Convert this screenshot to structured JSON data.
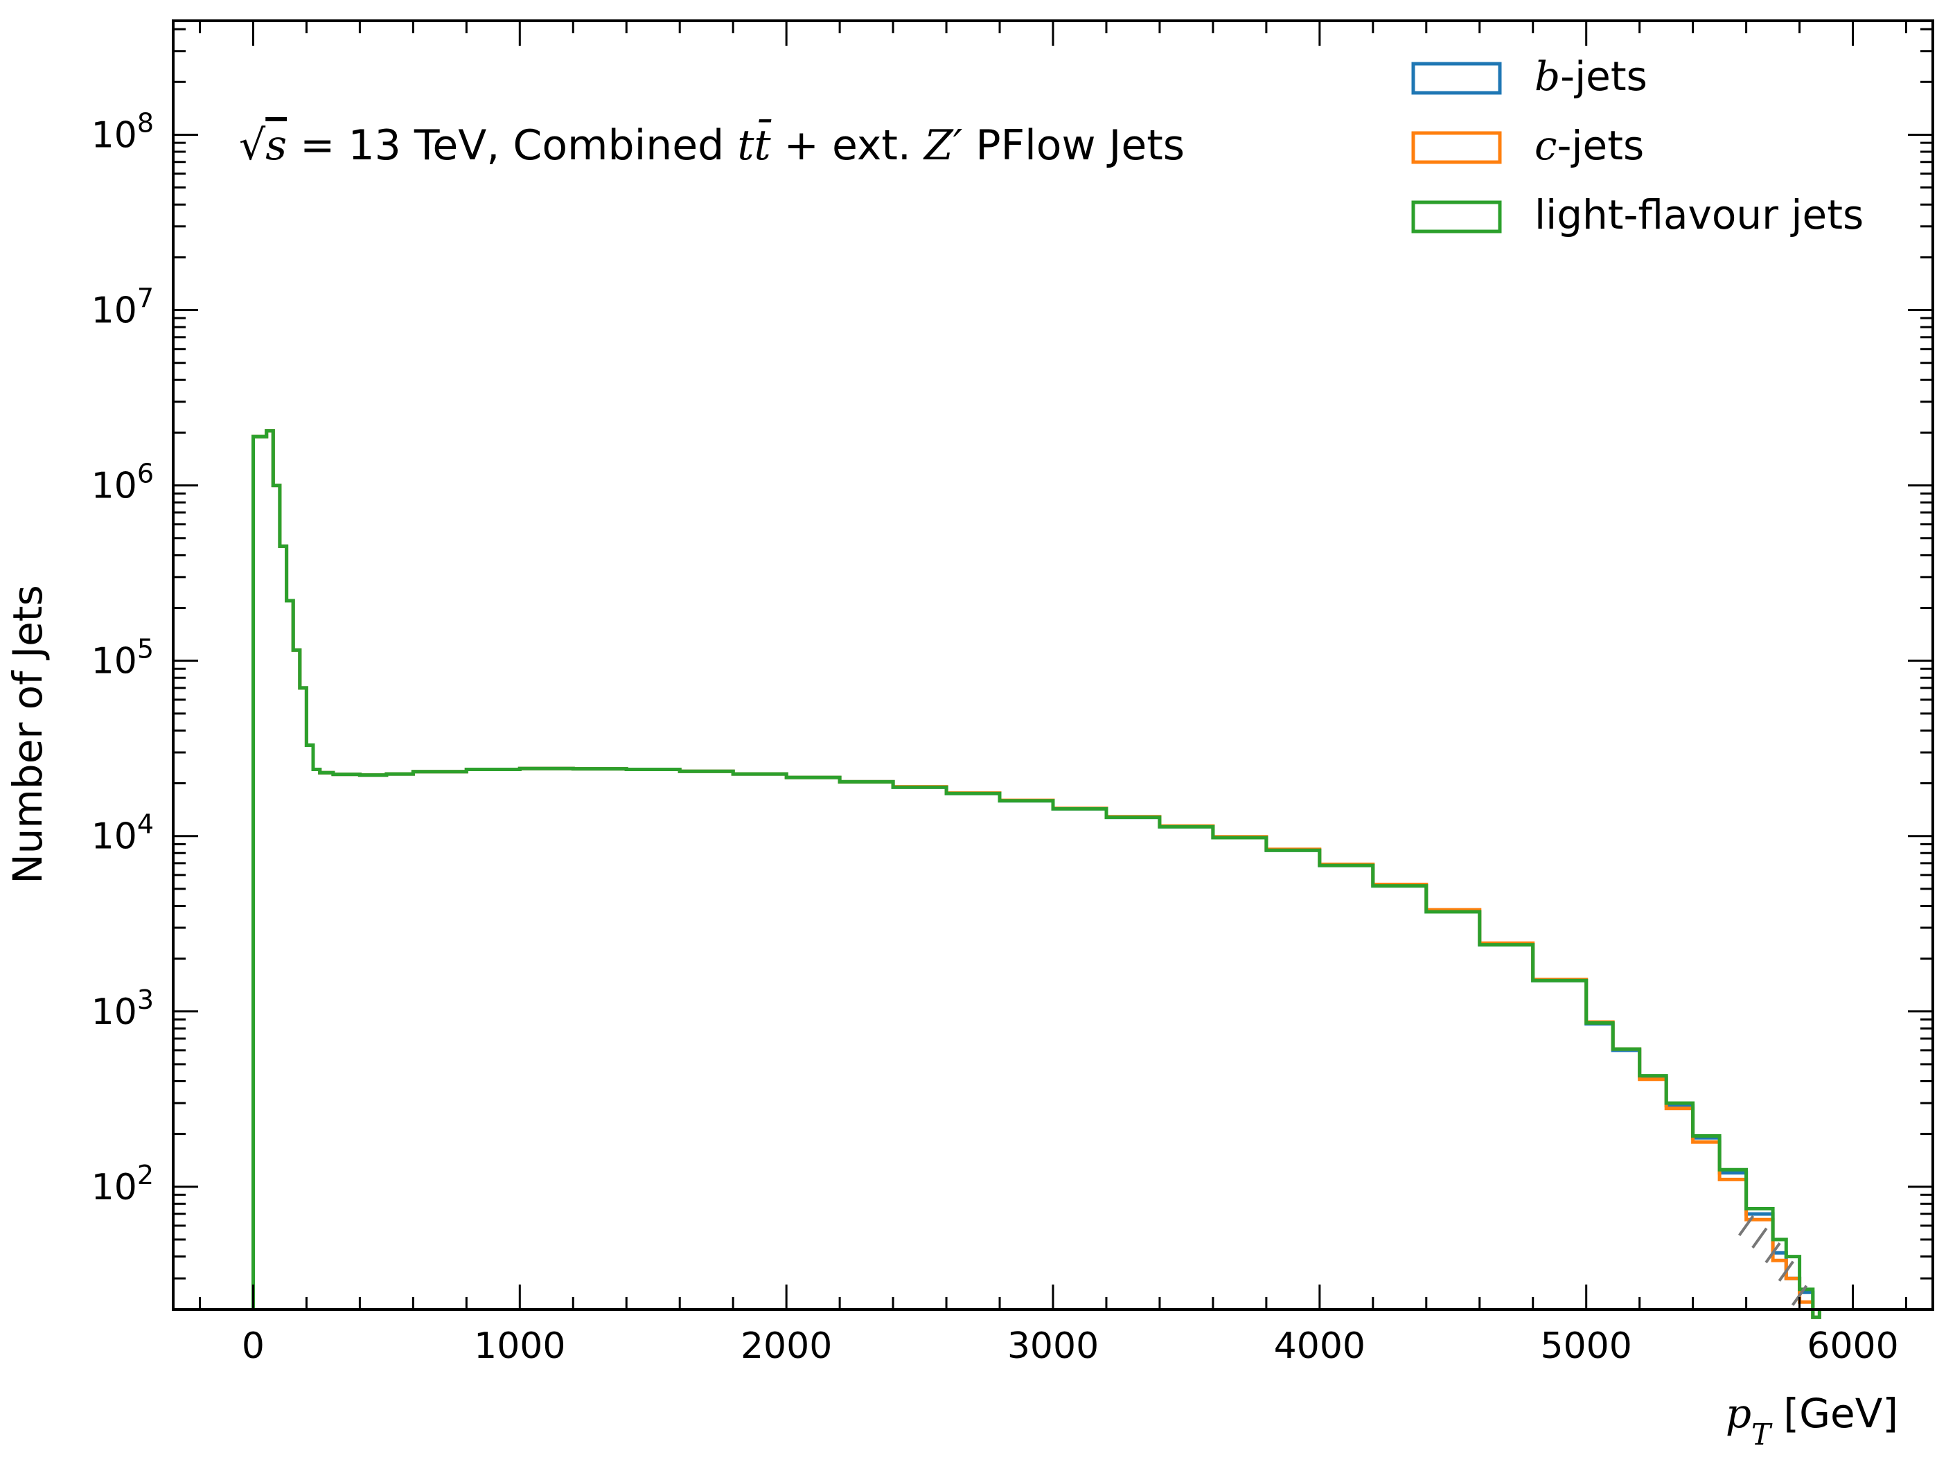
{
  "chart_data": {
    "type": "histogram",
    "title": "",
    "annotation": {
      "sqrt": "√",
      "s": "s",
      "rest": " = 13 TeV, Combined ",
      "tt": "tt̄",
      "plus_ext": " + ext. ",
      "z": "Z′",
      "tail": " PFlow Jets"
    },
    "xlabel": {
      "var": "p",
      "sub": "T",
      "unit": " [GeV]"
    },
    "ylabel": "Number of Jets",
    "xlim": [
      -300,
      6300
    ],
    "ylim_log10": [
      1.3,
      8.65
    ],
    "yscale": "log",
    "x_ticks": [
      "0",
      "1000",
      "2000",
      "3000",
      "4000",
      "5000",
      "6000"
    ],
    "x_tick_values": [
      0,
      1000,
      2000,
      3000,
      4000,
      5000,
      6000
    ],
    "y_ticks": [
      {
        "base": "10",
        "exp": "2",
        "value": 100
      },
      {
        "base": "10",
        "exp": "3",
        "value": 1000
      },
      {
        "base": "10",
        "exp": "4",
        "value": 10000
      },
      {
        "base": "10",
        "exp": "5",
        "value": 100000
      },
      {
        "base": "10",
        "exp": "6",
        "value": 1000000
      },
      {
        "base": "10",
        "exp": "7",
        "value": 10000000
      },
      {
        "base": "10",
        "exp": "8",
        "value": 100000000
      }
    ],
    "legend": {
      "position": "top-right",
      "entries": [
        {
          "ital": "b",
          "rest": "-jets",
          "color": "#1f77b4"
        },
        {
          "ital": "c",
          "rest": "-jets",
          "color": "#ff7f0e"
        },
        {
          "ital": "",
          "rest": "light-flavour jets",
          "color": "#2ca02c"
        }
      ]
    },
    "bin_edges_gev": [
      0,
      6000
    ],
    "bin_width_gev": 25,
    "series": [
      {
        "name": "b-jets",
        "color": "#1f77b4",
        "points": [
          [
            0,
            1900000
          ],
          [
            50,
            2050000
          ],
          [
            75,
            1000000
          ],
          [
            100,
            450000
          ],
          [
            125,
            220000
          ],
          [
            150,
            115000
          ],
          [
            175,
            70000
          ],
          [
            200,
            33000
          ],
          [
            225,
            24000
          ],
          [
            250,
            23000
          ],
          [
            300,
            22500
          ],
          [
            400,
            22300
          ],
          [
            500,
            22600
          ],
          [
            600,
            23300
          ],
          [
            800,
            24000
          ],
          [
            1000,
            24300
          ],
          [
            1200,
            24200
          ],
          [
            1400,
            24000
          ],
          [
            1600,
            23400
          ],
          [
            1800,
            22600
          ],
          [
            2000,
            21600
          ],
          [
            2200,
            20400
          ],
          [
            2400,
            19000
          ],
          [
            2600,
            17500
          ],
          [
            2800,
            15900
          ],
          [
            3000,
            14300
          ],
          [
            3200,
            12800
          ],
          [
            3400,
            11300
          ],
          [
            3600,
            9800
          ],
          [
            3800,
            8300
          ],
          [
            4000,
            6800
          ],
          [
            4200,
            5200
          ],
          [
            4400,
            3700
          ],
          [
            4600,
            2400
          ],
          [
            4800,
            1500
          ],
          [
            5000,
            850
          ],
          [
            5100,
            600
          ],
          [
            5200,
            420
          ],
          [
            5300,
            290
          ],
          [
            5400,
            190
          ],
          [
            5500,
            120
          ],
          [
            5600,
            70
          ],
          [
            5700,
            42
          ],
          [
            5750,
            30
          ],
          [
            5800,
            25
          ],
          [
            5850,
            18
          ]
        ]
      },
      {
        "name": "c-jets",
        "color": "#ff7f0e",
        "points": [
          [
            0,
            1900000
          ],
          [
            50,
            2050000
          ],
          [
            75,
            1000000
          ],
          [
            100,
            450000
          ],
          [
            125,
            220000
          ],
          [
            150,
            115000
          ],
          [
            175,
            70000
          ],
          [
            200,
            33000
          ],
          [
            225,
            24000
          ],
          [
            250,
            23000
          ],
          [
            300,
            22500
          ],
          [
            400,
            22300
          ],
          [
            500,
            22600
          ],
          [
            600,
            23300
          ],
          [
            800,
            24000
          ],
          [
            1000,
            24300
          ],
          [
            1200,
            24200
          ],
          [
            1400,
            24000
          ],
          [
            1600,
            23400
          ],
          [
            1800,
            22600
          ],
          [
            2000,
            21600
          ],
          [
            2200,
            20400
          ],
          [
            2400,
            19100
          ],
          [
            2600,
            17600
          ],
          [
            2800,
            16000
          ],
          [
            3000,
            14400
          ],
          [
            3200,
            12900
          ],
          [
            3400,
            11400
          ],
          [
            3600,
            9900
          ],
          [
            3800,
            8400
          ],
          [
            4000,
            6900
          ],
          [
            4200,
            5300
          ],
          [
            4400,
            3800
          ],
          [
            4600,
            2450
          ],
          [
            4800,
            1520
          ],
          [
            5000,
            870
          ],
          [
            5100,
            610
          ],
          [
            5200,
            410
          ],
          [
            5300,
            280
          ],
          [
            5400,
            180
          ],
          [
            5500,
            110
          ],
          [
            5600,
            65
          ],
          [
            5700,
            38
          ],
          [
            5750,
            30
          ],
          [
            5800,
            22
          ],
          [
            5850,
            18
          ]
        ]
      },
      {
        "name": "light-flavour jets",
        "color": "#2ca02c",
        "points": [
          [
            0,
            1900000
          ],
          [
            50,
            2050000
          ],
          [
            75,
            1000000
          ],
          [
            100,
            450000
          ],
          [
            125,
            220000
          ],
          [
            150,
            115000
          ],
          [
            175,
            70000
          ],
          [
            200,
            33000
          ],
          [
            225,
            24000
          ],
          [
            250,
            23000
          ],
          [
            300,
            22500
          ],
          [
            400,
            22300
          ],
          [
            500,
            22600
          ],
          [
            600,
            23300
          ],
          [
            800,
            24000
          ],
          [
            1000,
            24300
          ],
          [
            1200,
            24200
          ],
          [
            1400,
            24000
          ],
          [
            1600,
            23400
          ],
          [
            1800,
            22600
          ],
          [
            2000,
            21600
          ],
          [
            2200,
            20400
          ],
          [
            2400,
            19000
          ],
          [
            2600,
            17500
          ],
          [
            2800,
            15900
          ],
          [
            3000,
            14300
          ],
          [
            3200,
            12800
          ],
          [
            3400,
            11300
          ],
          [
            3600,
            9800
          ],
          [
            3800,
            8300
          ],
          [
            4000,
            6800
          ],
          [
            4200,
            5200
          ],
          [
            4400,
            3700
          ],
          [
            4600,
            2400
          ],
          [
            4800,
            1500
          ],
          [
            5000,
            860
          ],
          [
            5100,
            610
          ],
          [
            5200,
            430
          ],
          [
            5300,
            300
          ],
          [
            5400,
            195
          ],
          [
            5500,
            125
          ],
          [
            5600,
            75
          ],
          [
            5700,
            50
          ],
          [
            5750,
            40
          ],
          [
            5800,
            26
          ],
          [
            5850,
            18
          ]
        ]
      }
    ]
  }
}
